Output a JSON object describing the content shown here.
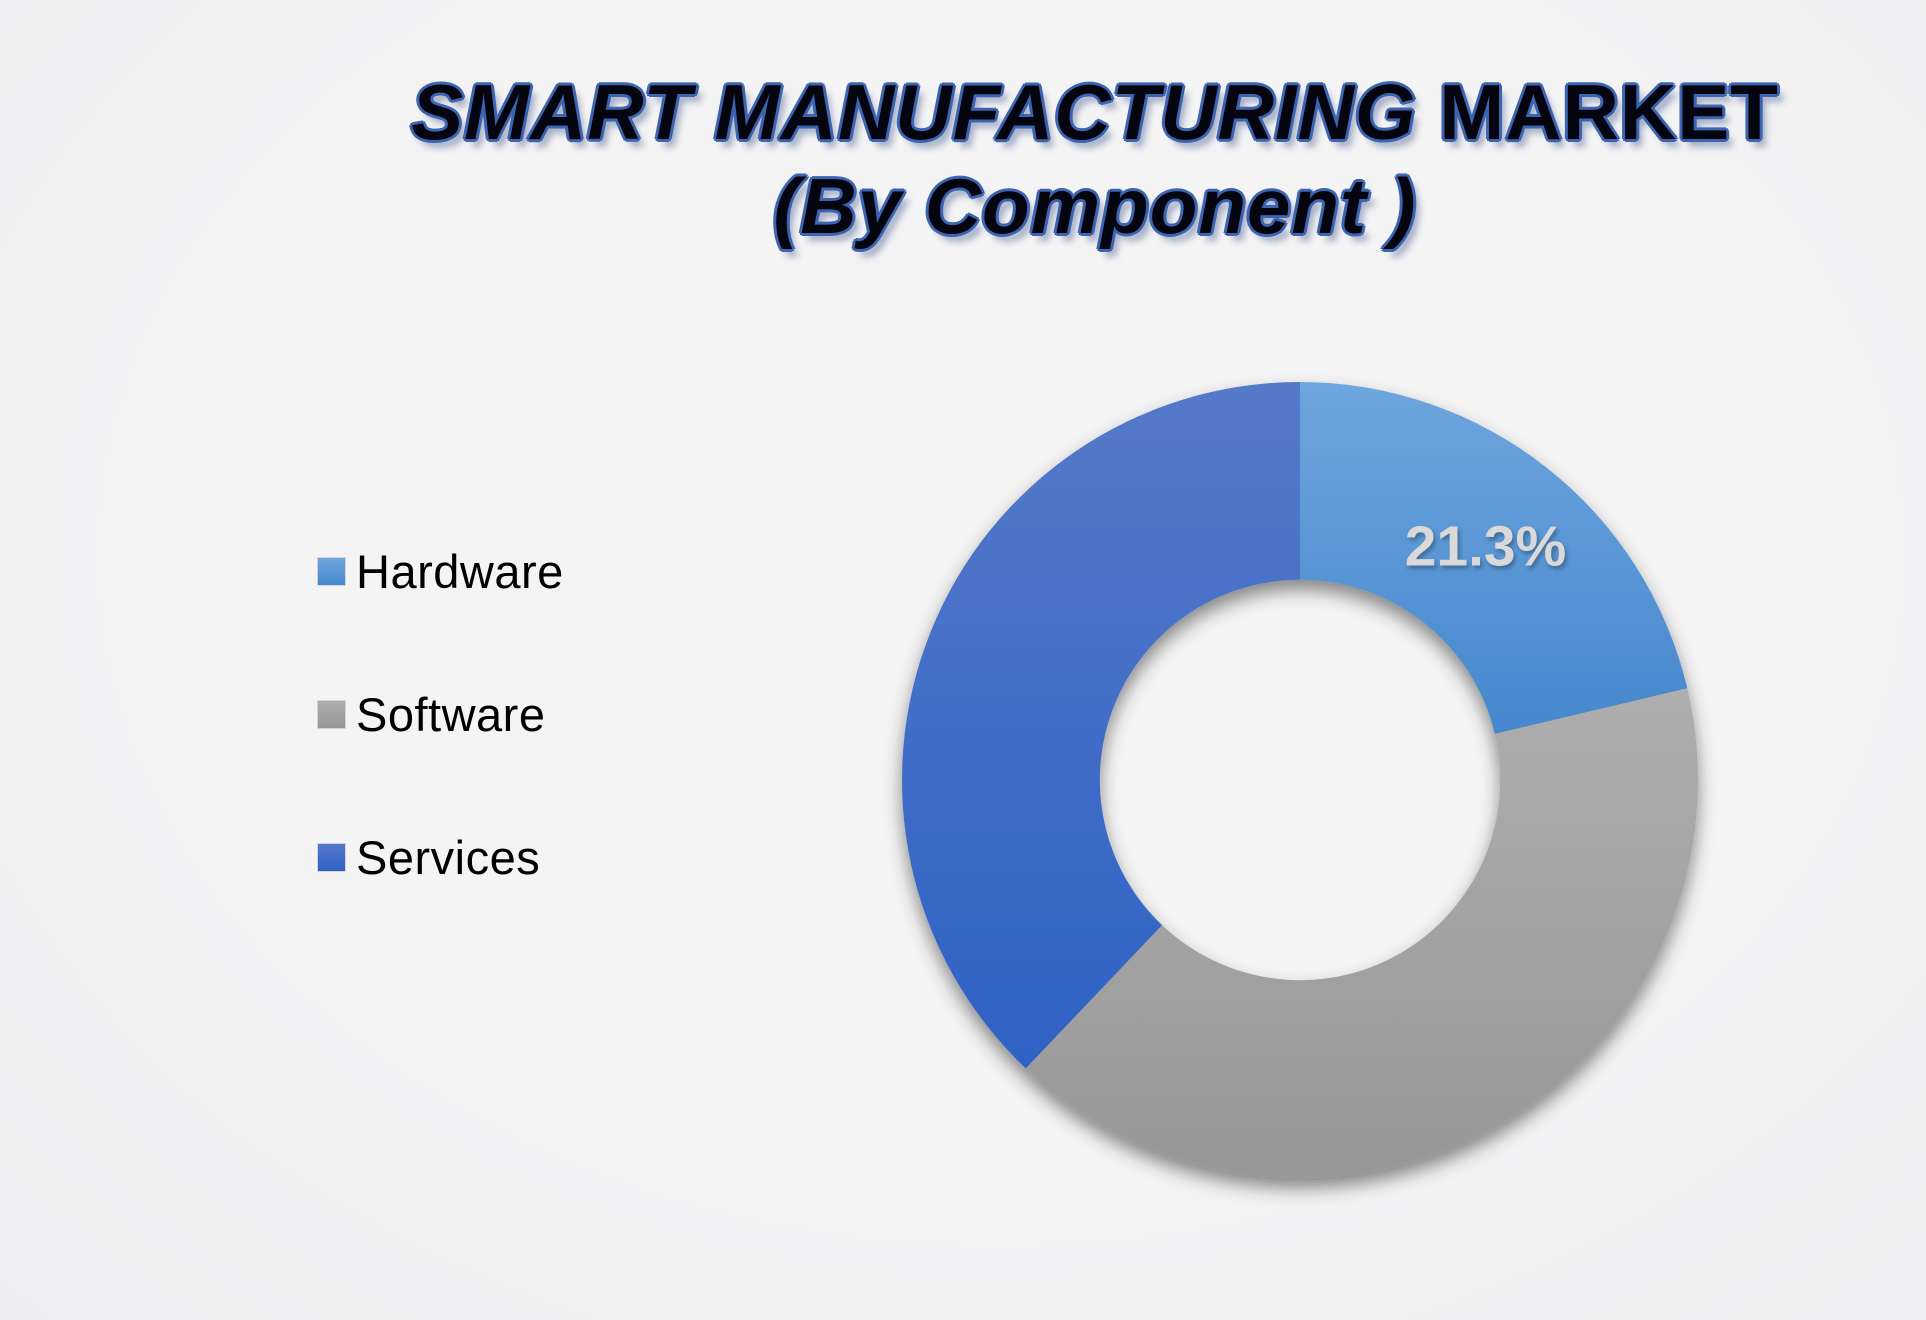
{
  "title": {
    "line1_italic": "SMART MANUFACTURING",
    "line1_regular": " MARKET",
    "line2": "(By Component )"
  },
  "colors": {
    "background": "#f1f1f2",
    "title_fill": "#05050f",
    "title_outline": "#3c64b0",
    "slice_label_color": "#d9d9d9"
  },
  "chart_data": {
    "type": "pie",
    "subtype": "donut",
    "title": "SMART MANUFACTURING MARKET (By Component )",
    "categories": [
      "Hardware",
      "Software",
      "Services"
    ],
    "values": [
      21.3,
      40.8,
      37.9
    ],
    "data_labels": [
      {
        "slice": "Hardware",
        "text": "21.3%"
      }
    ],
    "start_angle_deg": 0,
    "direction": "clockwise",
    "inner_radius_ratio": 0.503,
    "legend_position": "left",
    "grid": "off",
    "slice_gradients": [
      {
        "name": "blue",
        "from": "#6ea6de",
        "to": "#4587cd"
      },
      {
        "name": "gray",
        "from": "#aeaeae",
        "to": "#979797"
      },
      {
        "name": "dark-blue",
        "from": "#5579c9",
        "to": "#2e62c5"
      }
    ]
  }
}
